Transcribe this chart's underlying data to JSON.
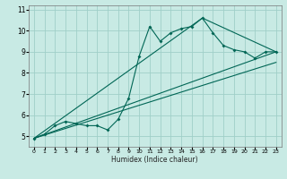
{
  "title": "",
  "xlabel": "Humidex (Indice chaleur)",
  "ylabel": "",
  "bg_color": "#c8eae4",
  "grid_color": "#a0cfc8",
  "line_color": "#006655",
  "xlim": [
    -0.5,
    23.5
  ],
  "ylim": [
    4.5,
    11.2
  ],
  "yticks": [
    5,
    6,
    7,
    8,
    9,
    10,
    11
  ],
  "xticks": [
    0,
    1,
    2,
    3,
    4,
    5,
    6,
    7,
    8,
    9,
    10,
    11,
    12,
    13,
    14,
    15,
    16,
    17,
    18,
    19,
    20,
    21,
    22,
    23
  ],
  "series1_x": [
    0,
    1,
    2,
    3,
    4,
    5,
    6,
    7,
    8,
    9,
    10,
    11,
    12,
    13,
    14,
    15,
    16,
    17,
    18,
    19,
    20,
    21,
    22,
    23
  ],
  "series1_y": [
    4.9,
    5.1,
    5.5,
    5.7,
    5.6,
    5.5,
    5.5,
    5.3,
    5.8,
    6.8,
    8.8,
    10.2,
    9.5,
    9.9,
    10.1,
    10.2,
    10.6,
    9.9,
    9.3,
    9.1,
    9.0,
    8.7,
    9.0,
    9.0
  ],
  "series2_x": [
    0,
    23
  ],
  "series2_y": [
    4.9,
    9.0
  ],
  "series3_x": [
    0,
    16,
    23
  ],
  "series3_y": [
    4.9,
    10.6,
    9.0
  ],
  "series4_x": [
    0,
    23
  ],
  "series4_y": [
    4.9,
    8.5
  ]
}
